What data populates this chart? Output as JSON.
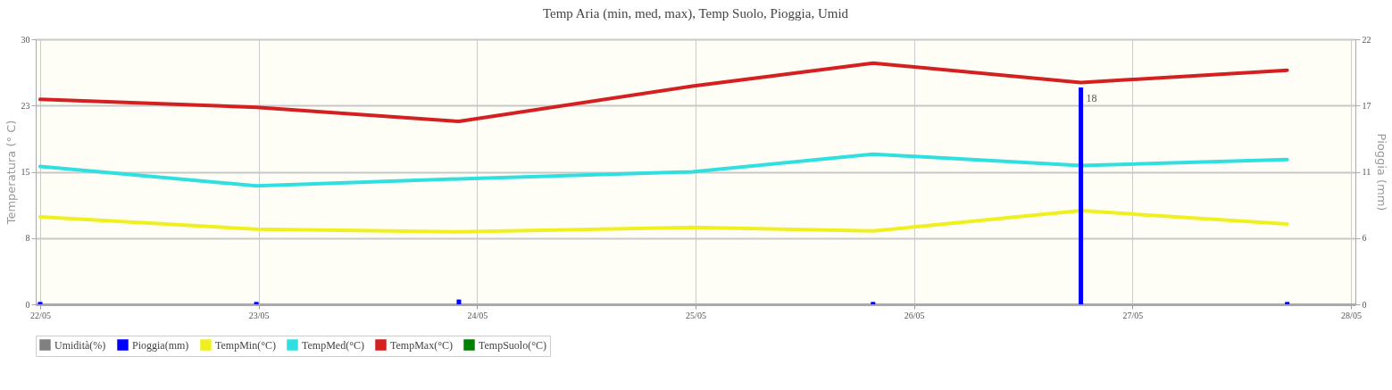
{
  "chart_data": {
    "type": "line",
    "title": "Temp Aria (min, med,  max), Temp Suolo, Pioggia,  Umid",
    "xlabel": null,
    "ylabel": "Temperatura (° C)",
    "y2label": "Pioggia (mm)",
    "x": [
      "--05-22T00:00",
      "--05-22T23:45",
      "--05-23T22:00",
      "--05-24T23:40",
      "--05-25T19:30",
      "--05-26T18:20",
      "--05-27T17:00"
    ],
    "xlim": [
      "--05-22T00:00",
      "--05-28T00:00"
    ],
    "xticks": [
      {
        "value": "--05-22",
        "label": "22/05"
      },
      {
        "value": "--05-23",
        "label": "23/05"
      },
      {
        "value": "--05-24",
        "label": "24/05"
      },
      {
        "value": "--05-25",
        "label": "25/05"
      },
      {
        "value": "--05-26",
        "label": "26/05"
      },
      {
        "value": "--05-27",
        "label": "27/05"
      },
      {
        "value": "--05-28",
        "label": "28/05"
      }
    ],
    "ylim": [
      0,
      30
    ],
    "yticks": [
      0,
      {
        "value": 7.5,
        "label": "8"
      },
      15,
      {
        "value": 22.5,
        "label": "23"
      },
      30
    ],
    "y2lim": [
      0,
      22
    ],
    "y2ticks": [
      0,
      {
        "value": 5.5,
        "label": "6"
      },
      11,
      {
        "value": 16.5,
        "label": "17"
      },
      22
    ],
    "series": [
      {
        "name": "Umidità(%)",
        "color": "#808080",
        "values": [
          null,
          null,
          null,
          null,
          null,
          null,
          null
        ]
      },
      {
        "name": "Pioggia(mm)",
        "type": "bar",
        "axis": "y2",
        "color": "#0000ff",
        "values": [
          0.2,
          0.2,
          0.4,
          null,
          0.2,
          18,
          0.2
        ],
        "value_labels": [
          null,
          null,
          null,
          null,
          null,
          "18",
          null
        ]
      },
      {
        "name": "TempMin(°C)",
        "color": "#f0f020",
        "values": [
          9.9,
          8.5,
          8.2,
          8.7,
          8.3,
          10.6,
          9.1
        ]
      },
      {
        "name": "TempMed(°C)",
        "color": "#30e0e0",
        "values": [
          15.6,
          13.4,
          14.2,
          15.0,
          17.0,
          15.7,
          16.4
        ]
      },
      {
        "name": "TempMax(°C)",
        "color": "#d42020",
        "values": [
          23.2,
          22.3,
          20.7,
          24.7,
          27.3,
          25.1,
          26.5
        ]
      },
      {
        "name": "TempSuolo(°C)",
        "color": "#008000",
        "values": [
          null,
          null,
          null,
          null,
          null,
          null,
          null
        ]
      }
    ],
    "grid": true,
    "legend": "bottom"
  }
}
